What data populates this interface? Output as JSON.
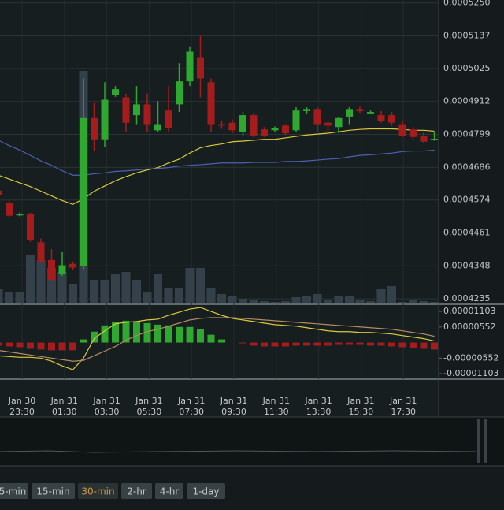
{
  "chart_data": {
    "type": "candlestick",
    "ylim": [
      0.0004219,
      0.000526
    ],
    "yticks": [
      {
        "value": 0.000525,
        "label": "0.0005250"
      },
      0.0005137,
      0.0005025,
      0.0004912,
      0.0004799,
      0.0004686,
      0.0004574,
      0.0004461,
      0.0004348,
      0.0004235
    ],
    "grid": true,
    "up_color": "#2ea82e",
    "down_color": "#a61c1c",
    "open": [
      0.0004606,
      0.0004565,
      0.0004523,
      0.0004525,
      0.0004429,
      0.0004368,
      0.0004319,
      0.0004355,
      0.0004348,
      0.0004855,
      0.0004782,
      0.0004933,
      0.0004926,
      0.0004865,
      0.0004902,
      0.0004813,
      0.0004881,
      0.0004902,
      0.0004981,
      0.0005064,
      0.0004978,
      0.0004834,
      0.0004839,
      0.0004808,
      0.0004865,
      0.0004816,
      0.0004813,
      0.0004829,
      0.0004813,
      0.0004879,
      0.0004886,
      0.0004839,
      0.0004824,
      0.000486,
      0.0004886,
      0.0004871,
      0.0004865,
      0.0004865,
      0.0004834,
      0.0004816,
      0.0004795,
      0.0004782
    ],
    "high": [
      0.0004612,
      0.0004572,
      0.0004531,
      0.0004531,
      0.0004442,
      0.0004405,
      0.0004395,
      0.0004363,
      0.0004991,
      0.0004907,
      0.0004978,
      0.0004965,
      0.0004939,
      0.0004965,
      0.0004939,
      0.0004913,
      0.0004965,
      0.0005043,
      0.0005101,
      0.0005137,
      0.0004991,
      0.0004845,
      0.000485,
      0.0004876,
      0.0004873,
      0.0004824,
      0.0004826,
      0.0004834,
      0.0004892,
      0.0004892,
      0.0004892,
      0.0004845,
      0.000486,
      0.0004892,
      0.0004894,
      0.0004881,
      0.0004879,
      0.0004876,
      0.0004845,
      0.0004824,
      0.0004808,
      0.0004808
    ],
    "low": [
      0.0004583,
      0.0004515,
      0.0004518,
      0.0004431,
      0.0004358,
      0.0004295,
      0.0004314,
      0.0004334,
      0.0004337,
      0.0004742,
      0.0004756,
      0.0004928,
      0.0004808,
      0.0004834,
      0.0004808,
      0.0004808,
      0.0004808,
      0.0004876,
      0.0004965,
      0.0004926,
      0.0004808,
      0.0004818,
      0.0004803,
      0.0004795,
      0.000479,
      0.000479,
      0.0004808,
      0.0004797,
      0.0004808,
      0.0004871,
      0.0004808,
      0.0004803,
      0.0004803,
      0.0004834,
      0.0004873,
      0.0004868,
      0.0004839,
      0.0004829,
      0.000479,
      0.0004782,
      0.0004769,
      0.0004777
    ],
    "close": [
      0.0004591,
      0.000452,
      0.0004525,
      0.0004436,
      0.0004363,
      0.00043,
      0.000435,
      0.0004342,
      0.0004855,
      0.0004782,
      0.0004918,
      0.0004954,
      0.0004839,
      0.0004902,
      0.0004834,
      0.0004834,
      0.0004821,
      0.0004981,
      0.0005083,
      0.0004991,
      0.0004834,
      0.0004829,
      0.0004813,
      0.0004865,
      0.0004795,
      0.0004795,
      0.0004821,
      0.0004803,
      0.0004881,
      0.0004886,
      0.0004834,
      0.0004829,
      0.0004855,
      0.0004886,
      0.0004879,
      0.0004876,
      0.0004845,
      0.0004839,
      0.0004795,
      0.000479,
      0.0004774,
      0.0004784
    ],
    "volume_color": "#34414a",
    "volume": [
      18,
      15,
      15,
      62,
      55,
      45,
      40,
      25,
      295,
      30,
      30,
      38,
      40,
      30,
      15,
      38,
      20,
      20,
      45,
      45,
      20,
      12,
      10,
      6,
      5,
      3,
      2,
      3,
      8,
      10,
      12,
      5,
      10,
      10,
      4,
      3,
      18,
      22,
      2,
      4,
      3,
      2
    ],
    "ma": [
      {
        "color": "#d9c93a",
        "values": [
          0.0004659,
          0.0004646,
          0.0004633,
          0.000462,
          0.0004604,
          0.0004588,
          0.0004572,
          0.0004559,
          0.0004578,
          0.0004604,
          0.0004622,
          0.000464,
          0.0004654,
          0.0004667,
          0.0004677,
          0.0004685,
          0.0004701,
          0.0004714,
          0.0004735,
          0.0004753,
          0.0004761,
          0.0004766,
          0.0004774,
          0.0004776,
          0.0004779,
          0.0004782,
          0.0004782,
          0.0004787,
          0.0004792,
          0.0004797,
          0.00048,
          0.0004803,
          0.0004808,
          0.0004813,
          0.0004816,
          0.0004818,
          0.0004818,
          0.0004818,
          0.0004816,
          0.0004813,
          0.0004813,
          0.000481
        ]
      },
      {
        "color": "#4a62b0",
        "values": [
          0.0004779,
          0.0004761,
          0.0004745,
          0.0004727,
          0.0004708,
          0.0004693,
          0.0004674,
          0.0004659,
          0.0004659,
          0.0004664,
          0.0004667,
          0.0004672,
          0.0004674,
          0.0004677,
          0.000468,
          0.0004682,
          0.0004685,
          0.000469,
          0.0004693,
          0.0004695,
          0.0004698,
          0.0004701,
          0.0004701,
          0.0004701,
          0.0004703,
          0.0004703,
          0.0004703,
          0.0004706,
          0.0004706,
          0.0004708,
          0.0004711,
          0.0004714,
          0.0004716,
          0.0004722,
          0.0004727,
          0.0004729,
          0.0004732,
          0.0004735,
          0.000474,
          0.0004742,
          0.0004742,
          0.0004745
        ]
      }
    ],
    "macd": {
      "ylim": [
        -1.27e-05,
        1.3e-05
      ],
      "yticks": [
        1.103e-05,
        5.52e-06,
        -5.52e-06,
        -1.103e-05
      ],
      "histogram": [
        -1.1e-06,
        -1.38e-06,
        -1.65e-06,
        -2.21e-06,
        -2.48e-06,
        -2.76e-06,
        -2.76e-06,
        -2.76e-06,
        1.1e-06,
        3.86e-06,
        6.07e-06,
        7.17e-06,
        7.72e-06,
        7.45e-06,
        6.89e-06,
        6.34e-06,
        6.07e-06,
        5.52e-06,
        5.52e-06,
        4.69e-06,
        2.76e-06,
        1.1e-06,
        0,
        -2.8e-07,
        -1.1e-06,
        -1.38e-06,
        -1.38e-06,
        -1.38e-06,
        -1.1e-06,
        -1.1e-06,
        -1.1e-06,
        -1.1e-06,
        -8.3e-07,
        -8.3e-07,
        -8.3e-07,
        -1.1e-06,
        -1.1e-06,
        -1.38e-06,
        -1.65e-06,
        -1.93e-06,
        -2.21e-06,
        -2.48e-06
      ],
      "lines": [
        {
          "color": "#d9c93a",
          "values": [
            -4.69e-06,
            -4.96e-06,
            -5.24e-06,
            -5.24e-06,
            -5.52e-06,
            -6.62e-06,
            -8.27e-06,
            -9.65e-06,
            -5.52e-06,
            1.38e-06,
            4.14e-06,
            6.62e-06,
            7.17e-06,
            7.45e-06,
            8e-06,
            8.27e-06,
            9.65e-06,
            1.075e-05,
            1.186e-05,
            1.241e-05,
            1.103e-05,
            9.65e-06,
            8.55e-06,
            8e-06,
            7.45e-06,
            6.89e-06,
            6.34e-06,
            6.07e-06,
            5.79e-06,
            5.24e-06,
            4.69e-06,
            4.14e-06,
            3.86e-06,
            3.86e-06,
            3.58e-06,
            3.58e-06,
            3.31e-06,
            3.03e-06,
            2.48e-06,
            1.93e-06,
            1.38e-06,
            5.5e-07
          ]
        },
        {
          "color": "#b58a62",
          "values": [
            -2.76e-06,
            -3.31e-06,
            -3.86e-06,
            -4.41e-06,
            -4.96e-06,
            -5.52e-06,
            -6.07e-06,
            -6.62e-06,
            -6.34e-06,
            -4.69e-06,
            -3.03e-06,
            -1.38e-06,
            8.3e-07,
            2.48e-06,
            3.86e-06,
            4.69e-06,
            5.79e-06,
            6.89e-06,
            8e-06,
            8.55e-06,
            8.82e-06,
            8.82e-06,
            8.82e-06,
            8.55e-06,
            8.27e-06,
            8e-06,
            7.72e-06,
            7.45e-06,
            7.17e-06,
            6.89e-06,
            6.62e-06,
            6.34e-06,
            6.07e-06,
            5.79e-06,
            5.52e-06,
            5.24e-06,
            4.96e-06,
            4.69e-06,
            4.14e-06,
            3.58e-06,
            3.03e-06,
            2.21e-06
          ]
        }
      ]
    },
    "xlabels": [
      [
        "Jan 30",
        "23:30"
      ],
      [
        "Jan 31",
        "01:30"
      ],
      [
        "Jan 31",
        "03:30"
      ],
      [
        "Jan 31",
        "05:30"
      ],
      [
        "Jan 31",
        "07:30"
      ],
      [
        "Jan 31",
        "09:30"
      ],
      [
        "Jan 31",
        "11:30"
      ],
      [
        "Jan 31",
        "13:30"
      ],
      [
        "Jan 31",
        "15:30"
      ],
      [
        "Jan 31",
        "17:30"
      ]
    ]
  },
  "toolbar": {
    "buttons": [
      "5-min",
      "15-min",
      "30-min",
      "2-hr",
      "4-hr",
      "1-day"
    ],
    "active": 2
  }
}
